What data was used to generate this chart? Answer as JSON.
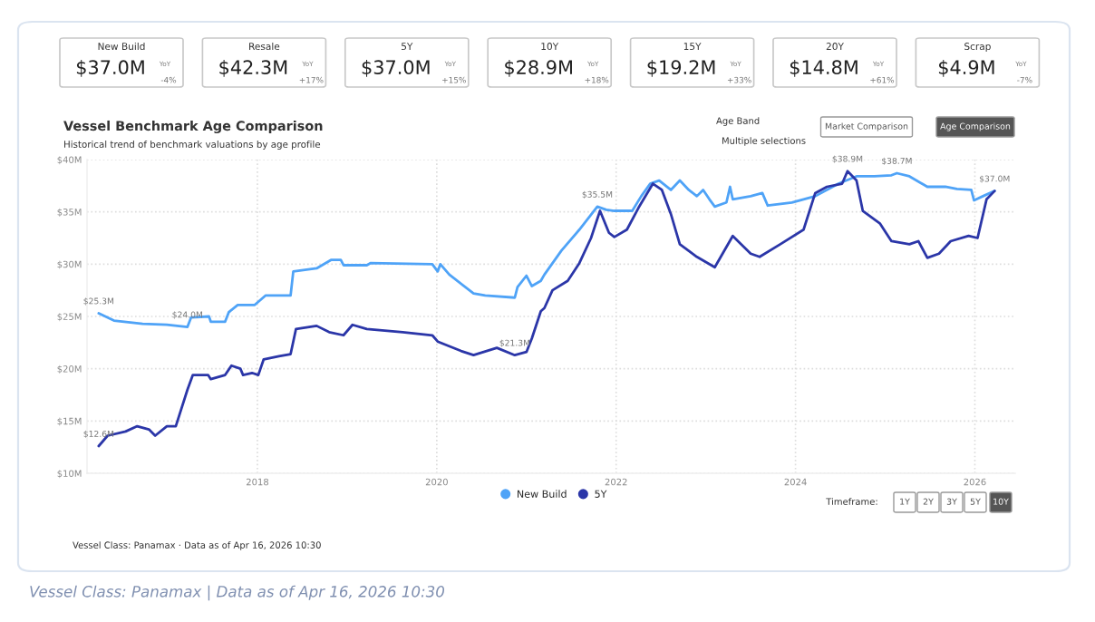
{
  "chart_data": {
    "type": "line",
    "title": "Vessel Benchmark Age Comparison",
    "subtitle": "Historical trend of benchmark valuations by age profile",
    "xlim": [
      2016.1,
      2026.45
    ],
    "xticks": [
      2018,
      2020,
      2022,
      2024,
      2026
    ],
    "ylim": [
      10,
      40
    ],
    "yticks": [
      {
        "value": 10,
        "label": "$10M"
      },
      {
        "value": 15,
        "label": "$15M"
      },
      {
        "value": 20,
        "label": "$20M"
      },
      {
        "value": 25,
        "label": "$25M"
      },
      {
        "value": 30,
        "label": "$30M"
      },
      {
        "value": 35,
        "label": "$35M"
      },
      {
        "value": 40,
        "label": "$40M"
      }
    ],
    "grid": true,
    "line_style": "solid",
    "legend": "bottom",
    "series": [
      {
        "name": "New Build",
        "color": "#4fa3f7",
        "x": [
          2016.23,
          2016.4,
          2016.72,
          2016.99,
          2017.22,
          2017.26,
          2017.46,
          2017.48,
          2017.64,
          2017.68,
          2017.78,
          2017.97,
          2018.09,
          2018.37,
          2018.4,
          2018.66,
          2018.82,
          2018.93,
          2018.96,
          2019.22,
          2019.26,
          2019.95,
          2020.01,
          2020.04,
          2020.14,
          2020.41,
          2020.54,
          2020.87,
          2020.9,
          2021.0,
          2021.06,
          2021.16,
          2021.2,
          2021.39,
          2021.59,
          2021.79,
          2021.89,
          2021.98,
          2022.18,
          2022.28,
          2022.38,
          2022.48,
          2022.61,
          2022.71,
          2022.81,
          2022.9,
          2022.97,
          2023.04,
          2023.1,
          2023.23,
          2023.27,
          2023.3,
          2023.5,
          2023.63,
          2023.69,
          2023.96,
          2024.09,
          2024.22,
          2024.48,
          2024.68,
          2024.88,
          2025.07,
          2025.13,
          2025.27,
          2025.47,
          2025.67,
          2025.8,
          2025.96,
          2025.99,
          2026.09,
          2026.22
        ],
        "values": [
          25.3,
          24.6,
          24.3,
          24.2,
          24.0,
          24.9,
          25.0,
          24.5,
          24.5,
          25.4,
          26.1,
          26.1,
          27.0,
          27.0,
          29.3,
          29.6,
          30.4,
          30.4,
          29.9,
          29.9,
          30.1,
          30.0,
          29.3,
          30.0,
          29.0,
          27.2,
          27.0,
          26.8,
          27.8,
          28.9,
          27.9,
          28.4,
          29.0,
          31.3,
          33.3,
          35.5,
          35.2,
          35.1,
          35.1,
          36.5,
          37.7,
          38.0,
          37.1,
          38.0,
          37.1,
          36.5,
          37.1,
          36.2,
          35.5,
          35.9,
          37.4,
          36.2,
          36.5,
          36.8,
          35.6,
          35.9,
          36.2,
          36.5,
          37.7,
          38.4,
          38.4,
          38.5,
          38.7,
          38.4,
          37.4,
          37.4,
          37.2,
          37.1,
          36.1,
          36.5,
          37.0
        ]
      },
      {
        "name": "5Y",
        "color": "#2b36a8",
        "x": [
          2016.23,
          2016.33,
          2016.53,
          2016.66,
          2016.79,
          2016.86,
          2016.99,
          2017.09,
          2017.22,
          2017.28,
          2017.45,
          2017.48,
          2017.64,
          2017.71,
          2017.81,
          2017.84,
          2017.94,
          2018.01,
          2018.07,
          2018.24,
          2018.37,
          2018.43,
          2018.66,
          2018.8,
          2018.96,
          2019.06,
          2019.22,
          2019.62,
          2019.95,
          2020.01,
          2020.27,
          2020.41,
          2020.67,
          2020.87,
          2021.0,
          2021.06,
          2021.16,
          2021.2,
          2021.29,
          2021.46,
          2021.59,
          2021.72,
          2021.82,
          2021.92,
          2021.98,
          2022.12,
          2022.25,
          2022.41,
          2022.51,
          2022.61,
          2022.71,
          2022.9,
          2023.1,
          2023.3,
          2023.5,
          2023.6,
          2023.83,
          2024.09,
          2024.22,
          2024.35,
          2024.52,
          2024.58,
          2024.68,
          2024.75,
          2024.94,
          2025.07,
          2025.27,
          2025.37,
          2025.47,
          2025.6,
          2025.73,
          2025.93,
          2026.03,
          2026.13,
          2026.22
        ],
        "values": [
          12.6,
          13.6,
          14.0,
          14.5,
          14.2,
          13.6,
          14.5,
          14.5,
          18.0,
          19.4,
          19.4,
          19.0,
          19.4,
          20.3,
          20.0,
          19.4,
          19.6,
          19.4,
          20.9,
          21.2,
          21.4,
          23.8,
          24.1,
          23.5,
          23.2,
          24.2,
          23.8,
          23.5,
          23.2,
          22.6,
          21.7,
          21.3,
          22.0,
          21.3,
          21.6,
          22.9,
          25.5,
          25.8,
          27.5,
          28.4,
          30.1,
          32.5,
          35.1,
          33.0,
          32.6,
          33.3,
          35.4,
          37.7,
          37.1,
          34.8,
          31.9,
          30.7,
          29.7,
          32.7,
          31.0,
          30.7,
          31.9,
          33.3,
          36.8,
          37.4,
          37.7,
          38.9,
          38.0,
          35.1,
          33.9,
          32.2,
          31.9,
          32.2,
          30.6,
          31.0,
          32.2,
          32.7,
          32.5,
          36.2,
          37.0
        ]
      }
    ],
    "annotations": [
      "New Build",
      "$37.0M",
      "YoY",
      "-4%",
      "Resale",
      "$42.3M",
      "YoY",
      "+17%",
      "5Y",
      "$37.0M",
      "YoY",
      "+15%",
      "10Y",
      "$28.9M",
      "YoY",
      "+18%",
      "15Y",
      "$19.2M",
      "YoY",
      "+33%",
      "20Y",
      "$14.8M",
      "YoY",
      "+61%",
      "Scrap",
      "$4.9M",
      "YoY",
      "-7%",
      {
        "text": "$25.3M",
        "x": 2016.23,
        "y": 25.3
      },
      {
        "text": "$24.0M",
        "x": 2017.22,
        "y": 24.0
      },
      {
        "text": "$12.6M",
        "x": 2016.23,
        "y": 12.6
      },
      {
        "text": "$21.3M",
        "x": 2020.87,
        "y": 21.3
      },
      {
        "text": "$35.5M",
        "x": 2021.79,
        "y": 35.5
      },
      {
        "text": "$38.9M",
        "x": 2024.58,
        "y": 38.9
      },
      {
        "text": "$38.7M",
        "x": 2025.13,
        "y": 38.7
      },
      {
        "text": "$37.0M",
        "x": 2026.22,
        "y": 37.0
      },
      "Age Band",
      "Multiple selections",
      "Market Comparison",
      "Age Comparison",
      "Timeframe:",
      "1Y",
      "2Y",
      "3Y",
      "5Y",
      "10Y",
      "Vessel Class: Panamax · Data as of Apr 16, 2026 10:30",
      "Vessel Class: Panamax | Data as of Apr 16, 2026 10:30"
    ]
  }
}
